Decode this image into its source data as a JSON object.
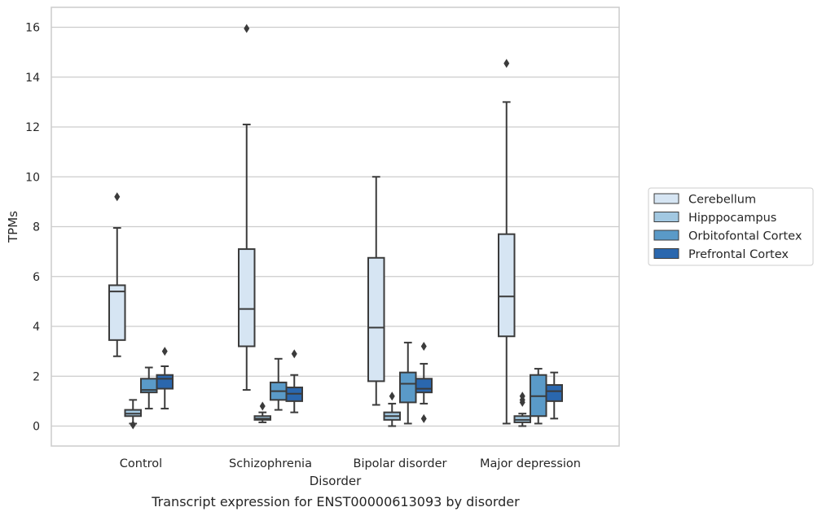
{
  "chart_data": {
    "type": "box",
    "title": "",
    "caption": "Transcript expression for ENST00000613093 by disorder",
    "xlabel": "Disorder",
    "ylabel": "TPMs",
    "ylim": [
      -0.8,
      16.8
    ],
    "yticks": [
      0,
      2,
      4,
      6,
      8,
      10,
      12,
      14,
      16
    ],
    "grid": true,
    "legend_position": "right",
    "categories": [
      "Control",
      "Schizophrenia",
      "Bipolar disorder",
      "Major depression"
    ],
    "series": [
      {
        "name": "Cerebellum",
        "color": "#d6e5f3",
        "boxes": [
          {
            "min": 2.8,
            "q1": 3.45,
            "median": 5.4,
            "q3": 5.65,
            "max": 7.95,
            "outliers": [
              9.2
            ]
          },
          {
            "min": 1.45,
            "q1": 3.2,
            "median": 4.7,
            "q3": 7.1,
            "max": 12.1,
            "outliers": [
              15.95
            ]
          },
          {
            "min": 0.85,
            "q1": 1.8,
            "median": 3.95,
            "q3": 6.75,
            "max": 10.0,
            "outliers": []
          },
          {
            "min": 0.1,
            "q1": 3.6,
            "median": 5.2,
            "q3": 7.7,
            "max": 13.0,
            "outliers": [
              14.55
            ]
          }
        ]
      },
      {
        "name": "Hipppocampus",
        "color": "#a2c8e1",
        "boxes": [
          {
            "min": 0.1,
            "q1": 0.4,
            "median": 0.5,
            "q3": 0.65,
            "max": 1.05,
            "outliers": [
              0.05
            ]
          },
          {
            "min": 0.15,
            "q1": 0.25,
            "median": 0.3,
            "q3": 0.4,
            "max": 0.55,
            "outliers": [
              0.8
            ]
          },
          {
            "min": 0.0,
            "q1": 0.25,
            "median": 0.4,
            "q3": 0.55,
            "max": 0.9,
            "outliers": [
              1.2
            ]
          },
          {
            "min": 0.0,
            "q1": 0.15,
            "median": 0.25,
            "q3": 0.4,
            "max": 0.5,
            "outliers": [
              0.95,
              1.05,
              1.2
            ]
          }
        ]
      },
      {
        "name": "Orbitofontal Cortex",
        "color": "#5a9ac8",
        "boxes": [
          {
            "min": 0.7,
            "q1": 1.35,
            "median": 1.45,
            "q3": 1.9,
            "max": 2.35,
            "outliers": []
          },
          {
            "min": 0.65,
            "q1": 1.05,
            "median": 1.4,
            "q3": 1.75,
            "max": 2.7,
            "outliers": []
          },
          {
            "min": 0.1,
            "q1": 0.95,
            "median": 1.7,
            "q3": 2.15,
            "max": 3.35,
            "outliers": []
          },
          {
            "min": 0.1,
            "q1": 0.4,
            "median": 1.2,
            "q3": 2.05,
            "max": 2.3,
            "outliers": []
          }
        ]
      },
      {
        "name": "Prefrontal Cortex",
        "color": "#2a67ae",
        "boxes": [
          {
            "min": 0.7,
            "q1": 1.5,
            "median": 1.9,
            "q3": 2.05,
            "max": 2.4,
            "outliers": [
              3.0
            ]
          },
          {
            "min": 0.55,
            "q1": 1.0,
            "median": 1.3,
            "q3": 1.55,
            "max": 2.05,
            "outliers": [
              2.9
            ]
          },
          {
            "min": 0.9,
            "q1": 1.35,
            "median": 1.5,
            "q3": 1.9,
            "max": 2.5,
            "outliers": [
              0.3,
              3.2
            ]
          },
          {
            "min": 0.3,
            "q1": 1.0,
            "median": 1.4,
            "q3": 1.65,
            "max": 2.15,
            "outliers": []
          }
        ]
      }
    ]
  }
}
